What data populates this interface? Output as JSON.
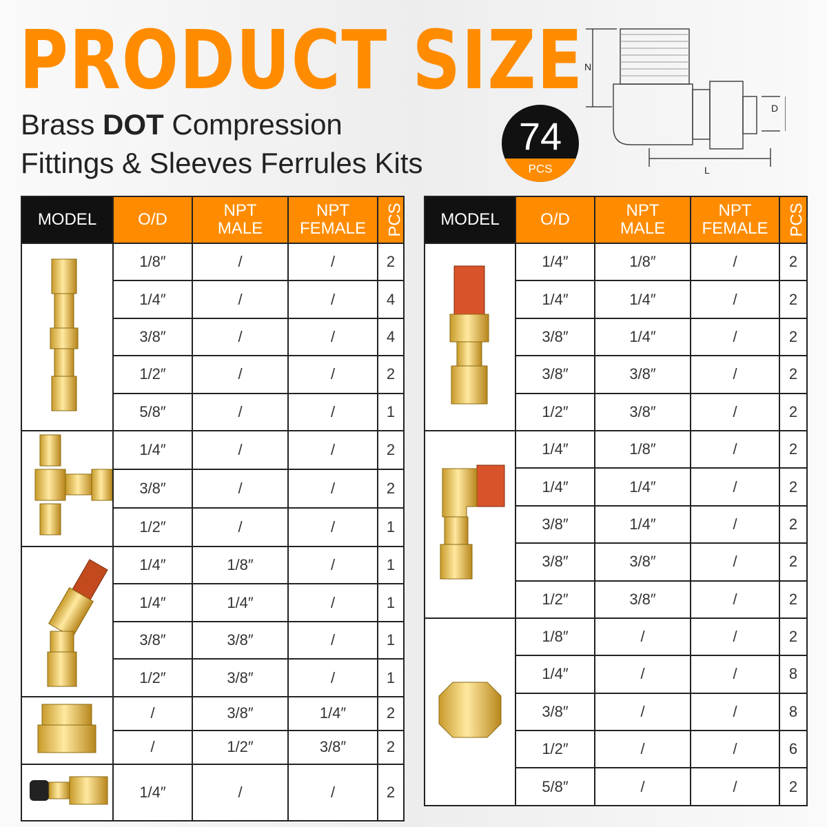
{
  "header": {
    "title": "PRODUCT SIZE",
    "subtitle": {
      "lead": "Brass",
      "emphasis": "DOT",
      "rest": "Compression",
      "line2": "Fittings & Sleeves Ferrules Kits"
    },
    "badge": {
      "count": 74,
      "unit": "PCS"
    }
  },
  "diagram": {
    "labels": [
      "N",
      "D",
      "L"
    ]
  },
  "tables": [
    {
      "columns": [
        [
          "MODEL"
        ],
        [
          "O/D"
        ],
        [
          "NPT",
          "MALE"
        ],
        [
          "NPT",
          "FEMALE"
        ],
        [
          "PCS"
        ]
      ],
      "groups": [
        {
          "rows": [
            [
              "1/8″",
              "/",
              "/",
              2
            ],
            [
              "1/4″",
              "/",
              "/",
              4
            ],
            [
              "3/8″",
              "/",
              "/",
              4
            ],
            [
              "1/2″",
              "/",
              "/",
              2
            ],
            [
              "5/8″",
              "/",
              "/",
              1
            ]
          ]
        },
        {
          "rows": [
            [
              "1/4″",
              "/",
              "/",
              2
            ],
            [
              "3/8″",
              "/",
              "/",
              2
            ],
            [
              "1/2″",
              "/",
              "/",
              1
            ]
          ]
        },
        {
          "rows": [
            [
              "1/4″",
              "1/8″",
              "/",
              1
            ],
            [
              "1/4″",
              "1/4″",
              "/",
              1
            ],
            [
              "3/8″",
              "3/8″",
              "/",
              1
            ],
            [
              "1/2″",
              "3/8″",
              "/",
              1
            ]
          ]
        },
        {
          "rows": [
            [
              "/",
              "3/8″",
              "1/4″",
              2
            ],
            [
              "/",
              "1/2″",
              "3/8″",
              2
            ]
          ]
        },
        {
          "rows": [
            [
              "1/4″",
              "/",
              "/",
              2
            ]
          ]
        }
      ]
    },
    {
      "columns": [
        [
          "MODEL"
        ],
        [
          "O/D"
        ],
        [
          "NPT",
          "MALE"
        ],
        [
          "NPT",
          "FEMALE"
        ],
        [
          "PCS"
        ]
      ],
      "groups": [
        {
          "rows": [
            [
              "1/4″",
              "1/8″",
              "/",
              2
            ],
            [
              "1/4″",
              "1/4″",
              "/",
              2
            ],
            [
              "3/8″",
              "1/4″",
              "/",
              2
            ],
            [
              "3/8″",
              "3/8″",
              "/",
              2
            ],
            [
              "1/2″",
              "3/8″",
              "/",
              2
            ]
          ]
        },
        {
          "rows": [
            [
              "1/4″",
              "1/8″",
              "/",
              2
            ],
            [
              "1/4″",
              "1/4″",
              "/",
              2
            ],
            [
              "3/8″",
              "1/4″",
              "/",
              2
            ],
            [
              "3/8″",
              "3/8″",
              "/",
              2
            ],
            [
              "1/2″",
              "3/8″",
              "/",
              2
            ]
          ]
        },
        {
          "rows": [
            [
              "1/8″",
              "/",
              "/",
              2
            ],
            [
              "1/4″",
              "/",
              "/",
              8
            ],
            [
              "3/8″",
              "/",
              "/",
              8
            ],
            [
              "1/2″",
              "/",
              "/",
              6
            ],
            [
              "5/8″",
              "/",
              "/",
              2
            ]
          ]
        }
      ]
    }
  ]
}
